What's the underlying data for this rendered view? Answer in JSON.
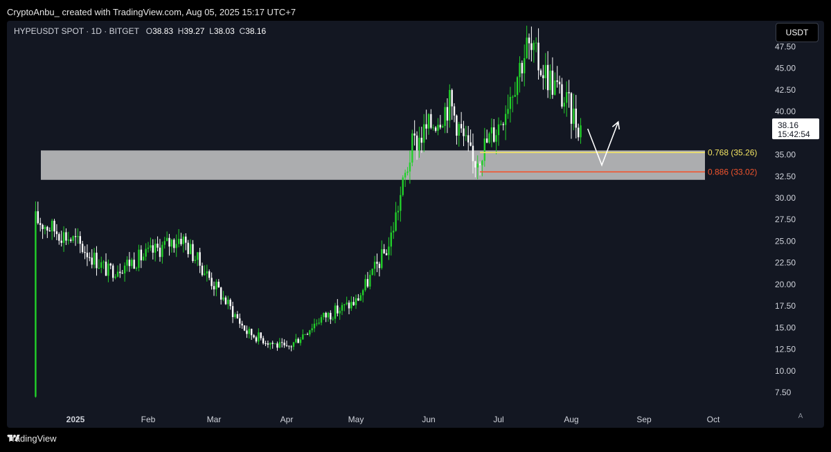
{
  "header": {
    "text": "CryptoAnbu_ created with TradingView.com, Aug 05, 2025 15:17 UTC+7"
  },
  "legend": {
    "symbol": "HYPEUSDT SPOT · 1D · BITGET",
    "o_label": "O",
    "o_value": "38.83",
    "h_label": "H",
    "h_value": "39.27",
    "l_label": "L",
    "l_value": "38.03",
    "c_label": "C",
    "c_value": "38.16"
  },
  "unit_button": "USDT",
  "price_label": {
    "price": "38.16",
    "countdown": "15:42:54"
  },
  "footer": {
    "brand": "TradingView"
  },
  "axis_button": "A",
  "colors": {
    "up": "#22d12a",
    "down": "#ffffff",
    "zone": "#c8c8c8",
    "fib768": "#f5e663",
    "fib886": "#f2542d",
    "bg": "#131722"
  },
  "chart_data": {
    "type": "candlestick",
    "y_ticks": [
      "7.50",
      "10.00",
      "12.50",
      "15.00",
      "17.50",
      "20.00",
      "22.50",
      "25.00",
      "27.50",
      "30.00",
      "32.50",
      "35.00",
      "37.50",
      "40.00",
      "42.50",
      "45.00",
      "47.50"
    ],
    "x_ticks": [
      "2025",
      "Feb",
      "Mar",
      "Apr",
      "May",
      "Jun",
      "Jul",
      "Aug",
      "Sep",
      "Oct"
    ],
    "ylim": [
      5.5,
      50.5
    ],
    "series": [
      {
        "date": "2024-12-15",
        "close": 27.5
      },
      {
        "date": "2025-01-01",
        "close": 25.0
      },
      {
        "date": "2025-01-15",
        "close": 21.5
      },
      {
        "date": "2025-02-01",
        "close": 23.5
      },
      {
        "date": "2025-02-15",
        "close": 25.5
      },
      {
        "date": "2025-03-01",
        "close": 20.0
      },
      {
        "date": "2025-03-15",
        "close": 14.5
      },
      {
        "date": "2025-04-01",
        "close": 12.5
      },
      {
        "date": "2025-04-15",
        "close": 16.0
      },
      {
        "date": "2025-05-01",
        "close": 18.0
      },
      {
        "date": "2025-05-15",
        "close": 24.5
      },
      {
        "date": "2025-05-25",
        "close": 36.0
      },
      {
        "date": "2025-06-10",
        "close": 41.0
      },
      {
        "date": "2025-06-20",
        "close": 34.0
      },
      {
        "date": "2025-07-01",
        "close": 38.5
      },
      {
        "date": "2025-07-13",
        "close": 47.5
      },
      {
        "date": "2025-07-25",
        "close": 43.0
      },
      {
        "date": "2025-08-05",
        "close": 38.16
      }
    ],
    "zone": {
      "low": 32.1,
      "high": 35.5
    },
    "fib_levels": [
      {
        "label": "0.768 (35.26)",
        "value": 35.26
      },
      {
        "label": "0.886 (33.02)",
        "value": 33.02
      }
    ],
    "projection": [
      {
        "date": "2025-08-08",
        "value": 38.0
      },
      {
        "date": "2025-08-14",
        "value": 33.8
      },
      {
        "date": "2025-08-21",
        "value": 38.8
      }
    ]
  }
}
